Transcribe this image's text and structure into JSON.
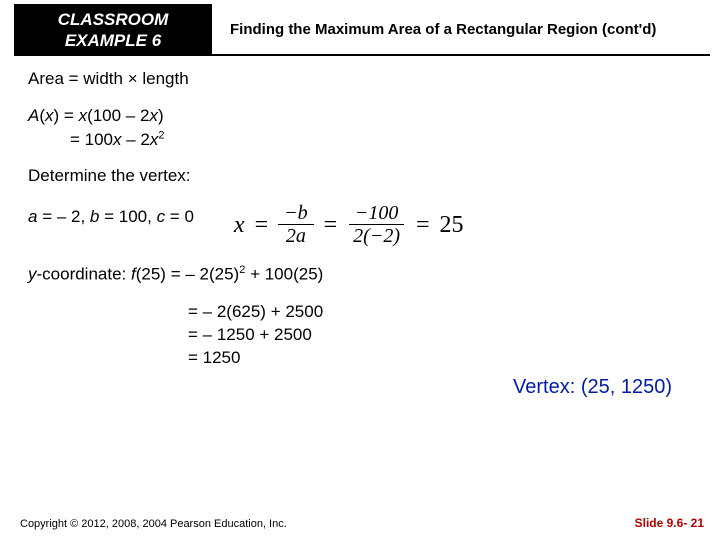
{
  "header": {
    "example_line1": "CLASSROOM",
    "example_line2": "EXAMPLE 6",
    "title": "Finding the Maximum Area of a Rectangular Region (cont'd)"
  },
  "lines": {
    "area_formula": "Area = width × length",
    "ax_line1_pre": "A",
    "ax_line1_mid": "(",
    "ax_line1_x": "x",
    "ax_line1_post": ") = ",
    "ax_line1_rhs": "x",
    "ax_line1_tail": "(100 – 2",
    "ax_line1_tail2": "x",
    "ax_line1_tail3": ")",
    "ax_line2_pre": "= 100",
    "ax_line2_x": "x",
    "ax_line2_mid": " – 2",
    "ax_line2_x2": "x",
    "ax_line2_exp": "2",
    "determine": "Determine the vertex:",
    "abc_a": "a",
    "abc_text1": " = – 2, ",
    "abc_b": "b",
    "abc_text2": " = 100, ",
    "abc_c": "c",
    "abc_text3": " = 0",
    "formula_x": "x",
    "formula_eq1": "=",
    "formula_num1": "−b",
    "formula_den1": "2a",
    "formula_eq2": "=",
    "formula_num2": "−100",
    "formula_den2": "2(−2)",
    "formula_eq3": "=",
    "formula_result": "25",
    "ycoord_label": "y",
    "ycoord_text1": "-coordinate: ",
    "ycoord_f": "f",
    "ycoord_text2": "(25) = – 2(25)",
    "ycoord_exp": "2",
    "ycoord_text3": " + 100(25)",
    "ycoord_l2": "= – 2(625) + 2500",
    "ycoord_l3": "= – 1250 + 2500",
    "ycoord_l4": "= 1250",
    "vertex": "Vertex:  (25, 1250)"
  },
  "footer": {
    "copyright": "Copyright © 2012, 2008, 2004 Pearson Education, Inc.",
    "slide": "Slide 9.6- 21"
  },
  "colors": {
    "vertex_color": "#001ba8",
    "slide_color": "#b00000"
  }
}
